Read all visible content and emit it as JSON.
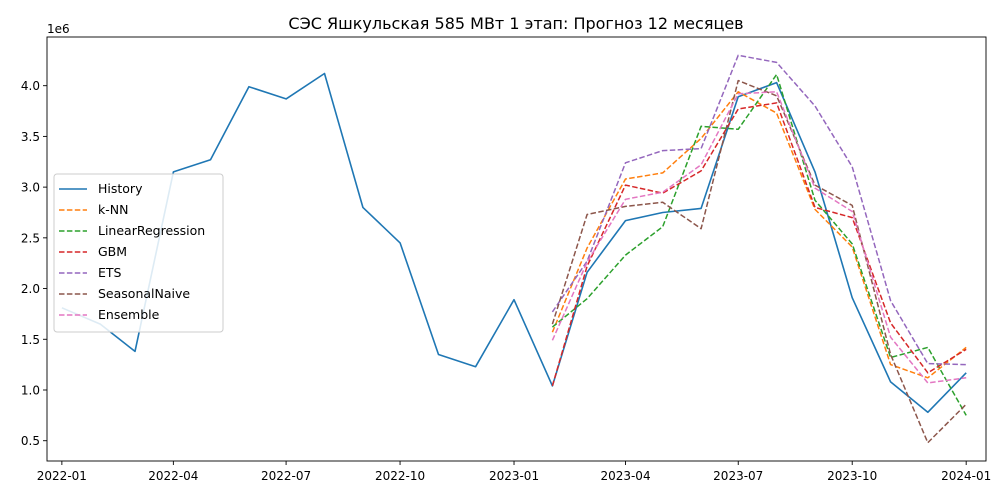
{
  "chart_data": {
    "type": "line",
    "title": "СЭС Яшкульская 585 МВт 1 этап: Прогноз 12 месяцев",
    "xlabel": "",
    "ylabel": "",
    "y_offset_label": "1e6",
    "xlim": [
      "2021-12-20",
      "2024-01-17"
    ],
    "ylim": [
      0.3,
      4.48
    ],
    "y_scale_factor": 1000000,
    "x_ticks": [
      {
        "date": "2022-01-01",
        "label": "2022-01"
      },
      {
        "date": "2022-04-01",
        "label": "2022-04"
      },
      {
        "date": "2022-07-01",
        "label": "2022-07"
      },
      {
        "date": "2022-10-01",
        "label": "2022-10"
      },
      {
        "date": "2023-01-01",
        "label": "2023-01"
      },
      {
        "date": "2023-04-01",
        "label": "2023-04"
      },
      {
        "date": "2023-07-01",
        "label": "2023-07"
      },
      {
        "date": "2023-10-01",
        "label": "2023-10"
      },
      {
        "date": "2024-01-01",
        "label": "2024-01"
      }
    ],
    "y_ticks": [
      {
        "value": 0.5,
        "label": "0.5"
      },
      {
        "value": 1.0,
        "label": "1.0"
      },
      {
        "value": 1.5,
        "label": "1.5"
      },
      {
        "value": 2.0,
        "label": "2.0"
      },
      {
        "value": 2.5,
        "label": "2.5"
      },
      {
        "value": 3.0,
        "label": "3.0"
      },
      {
        "value": 3.5,
        "label": "3.5"
      },
      {
        "value": 4.0,
        "label": "4.0"
      }
    ],
    "grid": false,
    "legend_placement": "center-left",
    "series": [
      {
        "name": "History",
        "color": "#1f77b4",
        "dashed": false,
        "x": [
          "2022-01-01",
          "2022-02-01",
          "2022-03-01",
          "2022-04-01",
          "2022-05-01",
          "2022-06-01",
          "2022-07-01",
          "2022-08-01",
          "2022-09-01",
          "2022-10-01",
          "2022-11-01",
          "2022-12-01",
          "2023-01-01",
          "2023-02-01",
          "2023-03-01",
          "2023-04-01",
          "2023-05-01",
          "2023-06-01",
          "2023-07-01",
          "2023-08-01",
          "2023-09-01",
          "2023-10-01",
          "2023-11-01",
          "2023-12-01",
          "2024-01-01"
        ],
        "y": [
          1.81,
          1.65,
          1.38,
          3.15,
          3.27,
          3.99,
          3.87,
          4.12,
          2.8,
          2.45,
          1.35,
          1.23,
          1.89,
          1.04,
          2.16,
          2.67,
          2.75,
          2.79,
          3.89,
          4.03,
          3.15,
          1.91,
          1.08,
          0.78,
          1.17
        ]
      },
      {
        "name": "k-NN",
        "color": "#ff7f0e",
        "dashed": true,
        "x": [
          "2023-02-01",
          "2023-03-01",
          "2023-04-01",
          "2023-05-01",
          "2023-06-01",
          "2023-07-01",
          "2023-08-01",
          "2023-09-01",
          "2023-10-01",
          "2023-11-01",
          "2023-12-01",
          "2024-01-01"
        ],
        "y": [
          1.57,
          2.4,
          3.08,
          3.14,
          3.48,
          3.94,
          3.73,
          2.78,
          2.41,
          1.25,
          1.12,
          1.42
        ]
      },
      {
        "name": "LinearRegression",
        "color": "#2ca02c",
        "dashed": true,
        "x": [
          "2023-02-01",
          "2023-03-01",
          "2023-04-01",
          "2023-05-01",
          "2023-06-01",
          "2023-07-01",
          "2023-08-01",
          "2023-09-01",
          "2023-10-01",
          "2023-11-01",
          "2023-12-01",
          "2024-01-01"
        ],
        "y": [
          1.62,
          1.9,
          2.33,
          2.61,
          3.6,
          3.57,
          4.11,
          2.87,
          2.44,
          1.32,
          1.42,
          0.75
        ]
      },
      {
        "name": "GBM",
        "color": "#d62728",
        "dashed": true,
        "x": [
          "2023-02-01",
          "2023-03-01",
          "2023-04-01",
          "2023-05-01",
          "2023-06-01",
          "2023-07-01",
          "2023-08-01",
          "2023-09-01",
          "2023-10-01",
          "2023-11-01",
          "2023-12-01",
          "2024-01-01"
        ],
        "y": [
          1.04,
          2.22,
          3.02,
          2.94,
          3.16,
          3.77,
          3.83,
          2.8,
          2.7,
          1.66,
          1.17,
          1.4
        ]
      },
      {
        "name": "ETS",
        "color": "#9467bd",
        "dashed": true,
        "x": [
          "2023-02-01",
          "2023-03-01",
          "2023-04-01",
          "2023-05-01",
          "2023-06-01",
          "2023-07-01",
          "2023-08-01",
          "2023-09-01",
          "2023-10-01",
          "2023-11-01",
          "2023-12-01",
          "2024-01-01"
        ],
        "y": [
          1.77,
          2.27,
          3.24,
          3.36,
          3.38,
          4.3,
          4.23,
          3.8,
          3.2,
          1.88,
          1.26,
          1.25
        ]
      },
      {
        "name": "SeasonalNaive",
        "color": "#8c564b",
        "dashed": true,
        "x": [
          "2023-02-01",
          "2023-03-01",
          "2023-04-01",
          "2023-05-01",
          "2023-06-01",
          "2023-07-01",
          "2023-08-01",
          "2023-09-01",
          "2023-10-01",
          "2023-11-01",
          "2023-12-01",
          "2024-01-01"
        ],
        "y": [
          1.65,
          2.73,
          2.81,
          2.85,
          2.59,
          4.05,
          3.9,
          3.02,
          2.82,
          1.35,
          0.48,
          0.86
        ]
      },
      {
        "name": "Ensemble",
        "color": "#e377c2",
        "dashed": true,
        "x": [
          "2023-02-01",
          "2023-03-01",
          "2023-04-01",
          "2023-05-01",
          "2023-06-01",
          "2023-07-01",
          "2023-08-01",
          "2023-09-01",
          "2023-10-01",
          "2023-11-01",
          "2023-12-01",
          "2024-01-01"
        ],
        "y": [
          1.49,
          2.26,
          2.88,
          2.95,
          3.22,
          3.92,
          3.94,
          2.99,
          2.76,
          1.52,
          1.07,
          1.12
        ]
      }
    ]
  }
}
